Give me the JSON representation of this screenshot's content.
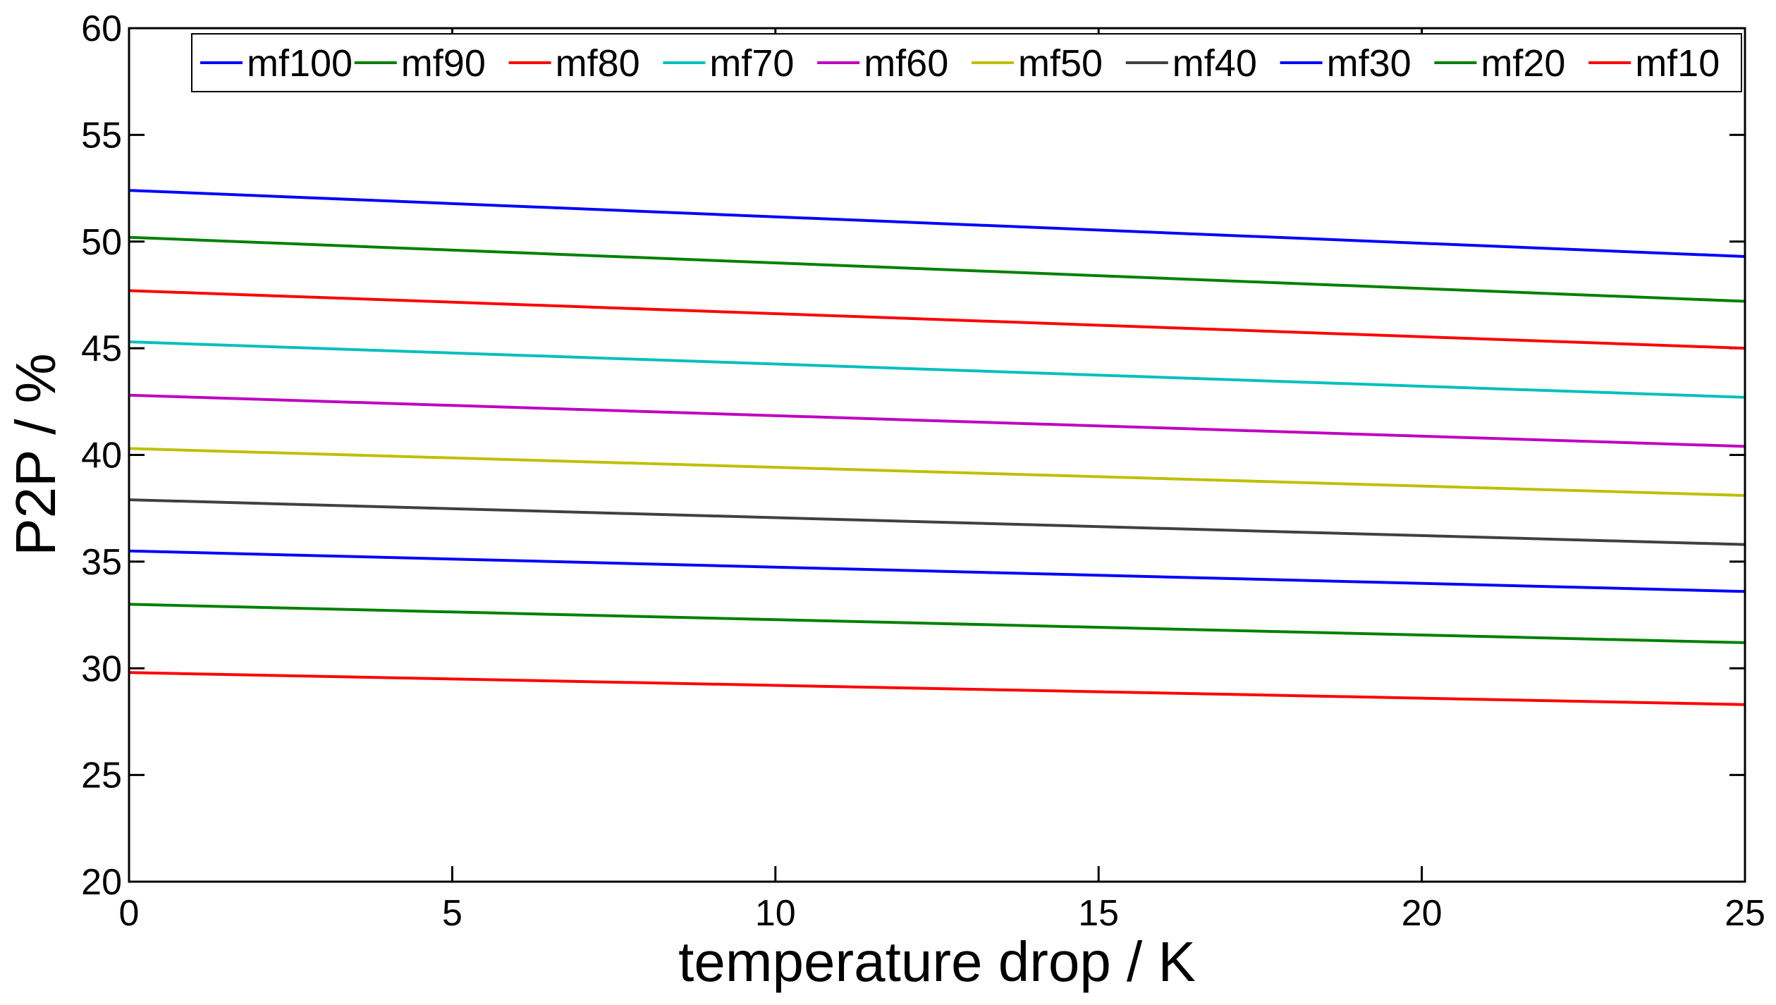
{
  "chart_data": {
    "type": "line",
    "title": "",
    "xlabel": "temperature drop / K",
    "ylabel": "P2P / %",
    "xlim": [
      0,
      25
    ],
    "ylim": [
      20,
      60
    ],
    "xticks": [
      0,
      5,
      10,
      15,
      20,
      25
    ],
    "yticks": [
      20,
      25,
      30,
      35,
      40,
      45,
      50,
      55,
      60
    ],
    "grid": false,
    "legend_position": "top",
    "x": [
      0,
      25
    ],
    "series": [
      {
        "name": "mf100",
        "color": "#0000ff",
        "values": [
          52.4,
          49.3
        ]
      },
      {
        "name": "mf90",
        "color": "#008000",
        "values": [
          50.2,
          47.2
        ]
      },
      {
        "name": "mf80",
        "color": "#ff0000",
        "values": [
          47.7,
          45.0
        ]
      },
      {
        "name": "mf70",
        "color": "#00bfbf",
        "values": [
          45.3,
          42.7
        ]
      },
      {
        "name": "mf60",
        "color": "#bf00bf",
        "values": [
          42.8,
          40.4
        ]
      },
      {
        "name": "mf50",
        "color": "#bfbf00",
        "values": [
          40.3,
          38.1
        ]
      },
      {
        "name": "mf40",
        "color": "#404040",
        "values": [
          37.9,
          35.8
        ]
      },
      {
        "name": "mf30",
        "color": "#0000ff",
        "values": [
          35.5,
          33.6
        ]
      },
      {
        "name": "mf20",
        "color": "#008000",
        "values": [
          33.0,
          31.2
        ]
      },
      {
        "name": "mf10",
        "color": "#ff0000",
        "values": [
          29.8,
          28.3
        ]
      }
    ]
  }
}
